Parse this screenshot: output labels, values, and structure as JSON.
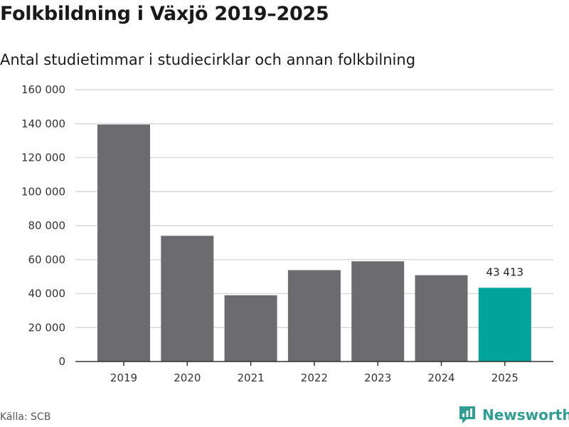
{
  "title": "Folkbildning i Växjö 2019–2025",
  "subtitle": "Antal studietimmar i studiecirklar och annan folkbilning",
  "source": "Källa: SCB",
  "brand": {
    "name": "Newsworthy"
  },
  "colors": {
    "bar_default": "#6c6b70",
    "bar_highlight": "#00a49b",
    "grid": "#d9d9d9",
    "axis": "#333333",
    "brand": "#2e9e93"
  },
  "chart_data": {
    "type": "bar",
    "title": "Folkbildning i Växjö 2019–2025",
    "subtitle": "Antal studietimmar i studiecirklar och annan folkbilning",
    "xlabel": "",
    "ylabel": "",
    "categories": [
      "2019",
      "2020",
      "2021",
      "2022",
      "2023",
      "2024",
      "2025"
    ],
    "values": [
      139500,
      74000,
      39000,
      53800,
      59000,
      50800,
      43413
    ],
    "highlight_index": 6,
    "data_labels": [
      {
        "index": 6,
        "text": "43 413"
      }
    ],
    "ylim": [
      0,
      160000
    ],
    "yticks": [
      0,
      20000,
      40000,
      60000,
      80000,
      100000,
      120000,
      140000,
      160000
    ],
    "ytick_labels": [
      "0",
      "20 000",
      "40 000",
      "60 000",
      "80 000",
      "100 000",
      "120 000",
      "140 000",
      "160 000"
    ],
    "grid": true
  }
}
